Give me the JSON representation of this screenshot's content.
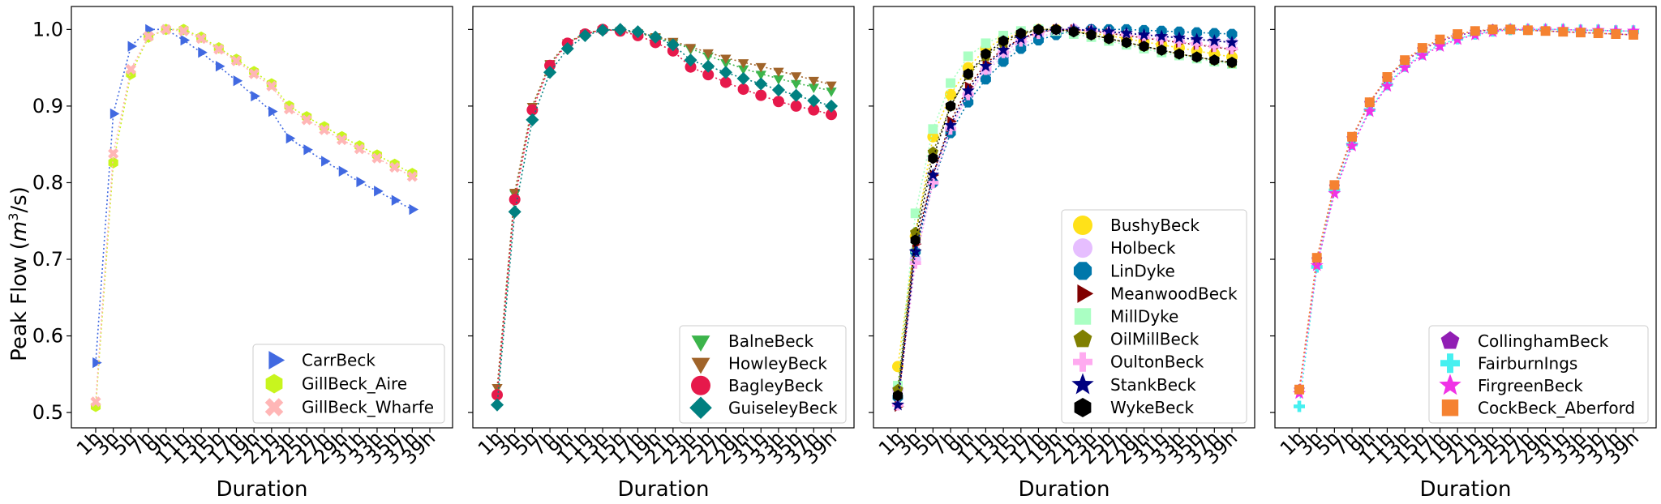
{
  "chart_data": {
    "type": "scatter",
    "x_ticks": [
      "1h",
      "3h",
      "5h",
      "7h",
      "9h",
      "11h",
      "13h",
      "15h",
      "17h",
      "19h",
      "21h",
      "23h",
      "25h",
      "27h",
      "29h",
      "31h",
      "33h",
      "35h",
      "37h",
      "39h"
    ],
    "xlabel": "Duration",
    "ylabel": "Peak Flow (m³/s)",
    "ylabel_main": "Peak Flow (",
    "ylabel_m": "m",
    "ylabel_exp": "3",
    "ylabel_tail": "/s)",
    "ylim": [
      0.48,
      1.03
    ],
    "y_ticks": [
      "0.5",
      "0.6",
      "0.7",
      "0.8",
      "0.9",
      "1.0"
    ],
    "grid": false,
    "legend_placement": "lower-right",
    "panels": [
      {
        "series": [
          {
            "name": "CarrBeck",
            "color": "#4169e1",
            "marker": "triangle-right",
            "values": [
              0.565,
              0.89,
              0.978,
              1.0,
              1.0,
              0.986,
              0.97,
              0.952,
              0.933,
              0.913,
              0.893,
              0.858,
              0.843,
              0.828,
              0.815,
              0.801,
              0.789,
              0.777,
              0.765
            ]
          },
          {
            "name": "GillBeck_Aire",
            "color": "#c8f51e",
            "marker": "hexagon",
            "values": [
              0.508,
              0.826,
              0.942,
              0.99,
              1.0,
              1.0,
              0.99,
              0.976,
              0.961,
              0.945,
              0.929,
              0.9,
              0.886,
              0.873,
              0.86,
              0.848,
              0.836,
              0.824,
              0.812
            ]
          },
          {
            "name": "GillBeck_Wharfe",
            "color": "#ffb6b6",
            "marker": "x",
            "values": [
              0.514,
              0.838,
              0.948,
              0.991,
              1.0,
              0.998,
              0.988,
              0.974,
              0.959,
              0.942,
              0.926,
              0.896,
              0.882,
              0.869,
              0.856,
              0.844,
              0.832,
              0.82,
              0.808
            ]
          }
        ]
      },
      {
        "series": [
          {
            "name": "BalneBeck",
            "color": "#3cb44b",
            "marker": "triangle-down",
            "values": [
              0.522,
              0.786,
              0.9,
              0.955,
              0.983,
              0.994,
              1.0,
              0.999,
              0.995,
              0.99,
              0.983,
              0.975,
              0.966,
              0.957,
              0.949,
              0.942,
              0.936,
              0.93,
              0.925,
              0.92
            ]
          },
          {
            "name": "HowleyBeck",
            "color": "#a0642a",
            "marker": "triangle-down",
            "values": [
              0.533,
              0.788,
              0.9,
              0.956,
              0.983,
              0.995,
              1.0,
              0.999,
              0.996,
              0.991,
              0.985,
              0.977,
              0.97,
              0.963,
              0.957,
              0.952,
              0.946,
              0.94,
              0.934,
              0.928
            ]
          },
          {
            "name": "BagleyBeck",
            "color": "#e6194b",
            "marker": "circle",
            "values": [
              0.523,
              0.778,
              0.895,
              0.953,
              0.982,
              0.994,
              1.0,
              0.998,
              0.992,
              0.983,
              0.972,
              0.951,
              0.941,
              0.931,
              0.922,
              0.914,
              0.906,
              0.9,
              0.895,
              0.889
            ]
          },
          {
            "name": "GuiseleyBeck",
            "color": "#008080",
            "marker": "diamond",
            "values": [
              0.51,
              0.762,
              0.882,
              0.944,
              0.975,
              0.992,
              0.999,
              1.0,
              0.997,
              0.99,
              0.98,
              0.96,
              0.952,
              0.944,
              0.936,
              0.929,
              0.921,
              0.914,
              0.907,
              0.9
            ]
          }
        ]
      },
      {
        "series": [
          {
            "name": "BushyBeck",
            "color": "#ffe119",
            "marker": "circle",
            "values": [
              0.56,
              0.73,
              0.86,
              0.915,
              0.95,
              0.975,
              0.988,
              0.995,
              1.0,
              1.0,
              0.998,
              0.995,
              0.992,
              0.988,
              0.984,
              0.98,
              0.976,
              0.972,
              0.968,
              0.964
            ]
          },
          {
            "name": "Holbeck",
            "color": "#e6beff",
            "marker": "circle",
            "values": [
              0.53,
              0.7,
              0.8,
              0.87,
              0.915,
              0.945,
              0.965,
              0.98,
              0.99,
              0.996,
              1.0,
              1.0,
              0.998,
              0.996,
              0.994,
              0.992,
              0.99,
              0.988,
              0.986,
              0.984
            ]
          },
          {
            "name": "LinDyke",
            "color": "#0077aa",
            "marker": "octagon",
            "values": [
              0.52,
              0.71,
              0.8,
              0.865,
              0.905,
              0.935,
              0.958,
              0.975,
              0.986,
              0.993,
              0.998,
              1.0,
              1.0,
              1.0,
              0.999,
              0.998,
              0.997,
              0.996,
              0.995,
              0.994
            ]
          },
          {
            "name": "MeanwoodBeck",
            "color": "#800000",
            "marker": "triangle-right",
            "values": [
              0.508,
              0.72,
              0.81,
              0.88,
              0.925,
              0.955,
              0.975,
              0.988,
              0.996,
              1.0,
              1.0,
              0.998,
              0.995,
              0.992,
              0.989,
              0.986,
              0.983,
              0.98,
              0.977,
              0.974
            ]
          },
          {
            "name": "MillDyke",
            "color": "#aaffc3",
            "marker": "square",
            "values": [
              0.535,
              0.76,
              0.87,
              0.93,
              0.965,
              0.982,
              0.992,
              0.998,
              1.0,
              0.998,
              0.994,
              0.99,
              0.985,
              0.98,
              0.975,
              0.97,
              0.966,
              0.962,
              0.958,
              0.955
            ]
          },
          {
            "name": "OilMillBeck",
            "color": "#808000",
            "marker": "pentagon",
            "values": [
              0.53,
              0.735,
              0.84,
              0.9,
              0.94,
              0.965,
              0.982,
              0.993,
              1.0,
              1.0,
              0.998,
              0.993,
              0.988,
              0.983,
              0.978,
              0.973,
              0.968,
              0.964,
              0.96,
              0.956
            ]
          },
          {
            "name": "OultonBeck",
            "color": "#ffaaf0",
            "marker": "plus",
            "values": [
              0.51,
              0.695,
              0.8,
              0.87,
              0.915,
              0.948,
              0.97,
              0.985,
              0.995,
              1.0,
              1.0,
              0.998,
              0.996,
              0.993,
              0.99,
              0.987,
              0.984,
              0.981,
              0.978,
              0.975
            ]
          },
          {
            "name": "StankBeck",
            "color": "#000080",
            "marker": "star",
            "values": [
              0.51,
              0.71,
              0.81,
              0.875,
              0.92,
              0.952,
              0.973,
              0.988,
              0.997,
              1.0,
              1.0,
              0.999,
              0.997,
              0.995,
              0.993,
              0.991,
              0.989,
              0.987,
              0.985,
              0.983
            ]
          },
          {
            "name": "WykeBeck",
            "color": "#000000",
            "marker": "hexagon",
            "values": [
              0.522,
              0.725,
              0.832,
              0.9,
              0.942,
              0.968,
              0.985,
              0.995,
              1.0,
              1.0,
              0.997,
              0.993,
              0.988,
              0.983,
              0.978,
              0.973,
              0.968,
              0.964,
              0.96,
              0.957
            ]
          }
        ]
      },
      {
        "series": [
          {
            "name": "CollinghamBeck",
            "color": "#911eb4",
            "marker": "pentagon",
            "values": [
              0.53,
              0.7,
              0.795,
              0.858,
              0.904,
              0.936,
              0.958,
              0.974,
              0.985,
              0.992,
              0.997,
              1.0,
              1.0,
              0.999,
              0.998,
              0.997,
              0.996,
              0.995,
              0.994,
              0.993
            ]
          },
          {
            "name": "FairburnIngs",
            "color": "#46f0f0",
            "marker": "plus",
            "values": [
              0.508,
              0.69,
              0.79,
              0.85,
              0.895,
              0.928,
              0.952,
              0.968,
              0.98,
              0.988,
              0.994,
              0.998,
              1.0,
              1.0,
              1.0,
              1.0,
              0.999,
              0.999,
              0.998,
              0.998
            ]
          },
          {
            "name": "FirgreenBeck",
            "color": "#f032e6",
            "marker": "star",
            "values": [
              0.525,
              0.692,
              0.786,
              0.848,
              0.893,
              0.926,
              0.95,
              0.966,
              0.978,
              0.987,
              0.993,
              0.997,
              1.0,
              1.0,
              1.0,
              1.0,
              0.999,
              0.999,
              0.998,
              0.998
            ]
          },
          {
            "name": "CockBeck_Aberford",
            "color": "#f58231",
            "marker": "square",
            "values": [
              0.53,
              0.702,
              0.797,
              0.86,
              0.905,
              0.938,
              0.96,
              0.976,
              0.987,
              0.994,
              0.998,
              1.0,
              1.0,
              0.999,
              0.998,
              0.997,
              0.996,
              0.995,
              0.994,
              0.993
            ]
          }
        ]
      }
    ]
  }
}
